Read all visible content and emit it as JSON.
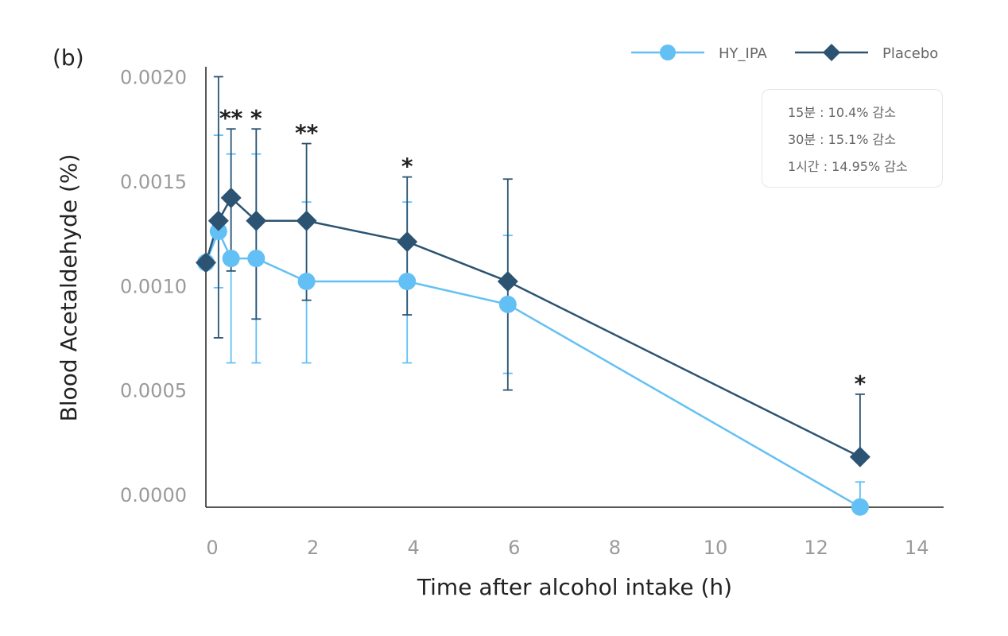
{
  "panel_label": "(b)",
  "notes": [
    "15분 : 10.4% 감소",
    "30분 : 15.1% 감소",
    "1시간 : 14.95% 감소"
  ],
  "chart_data": {
    "type": "line",
    "xlabel": "Time after alcohol intake (h)",
    "ylabel": "Blood Acetaldehyde (%)",
    "xlim": [
      0,
      14
    ],
    "ylim": [
      0.0,
      0.002
    ],
    "xticks": [
      0,
      2,
      4,
      6,
      8,
      10,
      12,
      14
    ],
    "yticks": [
      "0.0000",
      "0.0005",
      "0.0010",
      "0.0015",
      "0.0020"
    ],
    "legend_position": "top-right",
    "series": [
      {
        "name": "HY_IPA",
        "color": "#63c0f5",
        "marker": "circle",
        "x": [
          0,
          0.25,
          0.5,
          1,
          2,
          4,
          6,
          13
        ],
        "y": [
          0.00111,
          0.00126,
          0.00113,
          0.00113,
          0.00102,
          0.00102,
          0.00091,
          -6e-05
        ],
        "err_low": [
          0.00111,
          0.00099,
          0.00063,
          0.00063,
          0.00063,
          0.00063,
          0.00058,
          -6e-05
        ],
        "err_high": [
          0.00111,
          0.00172,
          0.00163,
          0.00163,
          0.0014,
          0.0014,
          0.00124,
          6e-05
        ]
      },
      {
        "name": "Placebo",
        "color": "#2c5472",
        "marker": "diamond",
        "x": [
          0,
          0.25,
          0.5,
          1,
          2,
          4,
          6,
          13
        ],
        "y": [
          0.00111,
          0.00131,
          0.00142,
          0.00131,
          0.00131,
          0.00121,
          0.00102,
          0.00018
        ],
        "err_low": [
          0.00111,
          0.00075,
          0.00107,
          0.00084,
          0.00093,
          0.00086,
          0.0005,
          0.00018
        ],
        "err_high": [
          0.00111,
          0.002,
          0.00175,
          0.00175,
          0.00168,
          0.00152,
          0.00151,
          0.00048
        ]
      }
    ],
    "significance": [
      {
        "x": 0.5,
        "label": "**"
      },
      {
        "x": 1,
        "label": "*"
      },
      {
        "x": 2,
        "label": "**"
      },
      {
        "x": 4,
        "label": "*"
      },
      {
        "x": 13,
        "label": "*"
      }
    ]
  }
}
